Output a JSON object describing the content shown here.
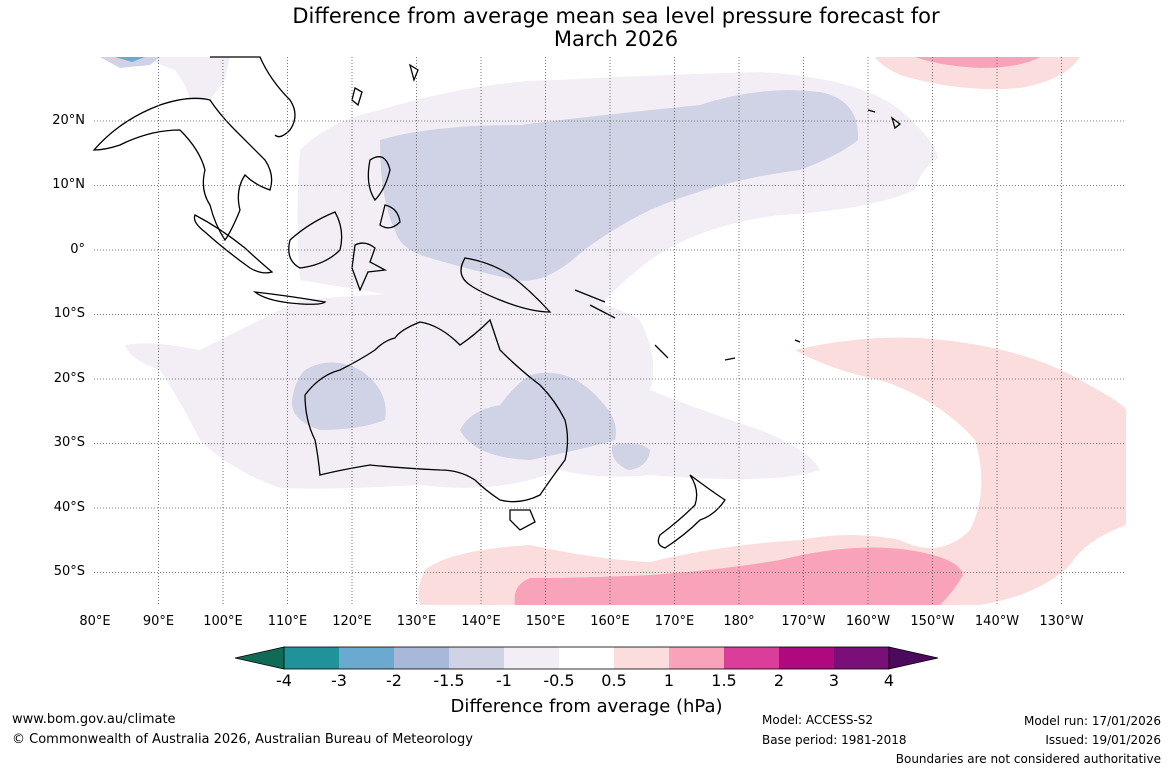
{
  "title_line1": "Difference from average mean sea level pressure forecast for",
  "title_line2": "March 2026",
  "lon_labels": [
    "80°E",
    "90°E",
    "100°E",
    "110°E",
    "120°E",
    "130°E",
    "140°E",
    "150°E",
    "160°E",
    "170°E",
    "180°",
    "170°W",
    "160°W",
    "150°W",
    "140°W",
    "130°W"
  ],
  "lat_labels": [
    "20°N",
    "10°N",
    "0°",
    "10°S",
    "20°S",
    "30°S",
    "40°S",
    "50°S"
  ],
  "colorbar": {
    "ticks": [
      "-4",
      "-3",
      "-2",
      "-1.5",
      "-1",
      "-0.5",
      "0.5",
      "1",
      "1.5",
      "2",
      "3",
      "4"
    ],
    "colors": [
      "#0f6b55",
      "#1f9399",
      "#6aaad0",
      "#a8b8d8",
      "#d0d2e6",
      "#f3eef6",
      "#ffffff",
      "#fcdddd",
      "#f8a3b9",
      "#db3e9a",
      "#b0087e",
      "#7a0f7a",
      "#4b0a5c"
    ],
    "label": "Difference from average (hPa)"
  },
  "footer": {
    "website": "www.bom.gov.au/climate",
    "copyright": "© Commonwealth of Australia 2026, Australian Bureau of Meteorology",
    "model": "Model: ACCESS-S2",
    "base_period": "Base period: 1981-2018",
    "model_run": "Model run: 17/01/2026",
    "issued": "Issued: 19/01/2026",
    "disclaimer": "Boundaries are not considered authoritative"
  }
}
